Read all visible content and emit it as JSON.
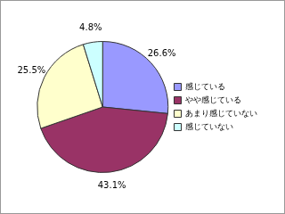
{
  "chart_data": {
    "type": "pie",
    "categories": [
      "感じている",
      "やや感じている",
      "あまり感じていない",
      "感じていない"
    ],
    "values": [
      26.6,
      43.1,
      25.5,
      4.8
    ],
    "value_labels": [
      "26.6%",
      "43.1%",
      "25.5%",
      "4.8%"
    ],
    "colors": [
      "#9999ff",
      "#993366",
      "#ffffcc",
      "#ccffff"
    ],
    "data_labels": true,
    "legend": "right"
  }
}
